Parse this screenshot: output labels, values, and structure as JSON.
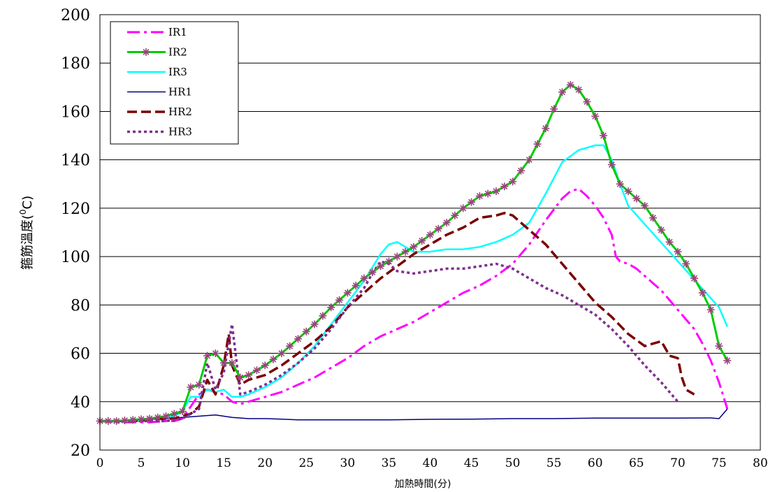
{
  "chart_data": {
    "type": "line",
    "title": "",
    "xlabel": "加熱時間(分)",
    "ylabel_main": "箍筋溫度(",
    "ylabel_sup": "0",
    "ylabel_end": "C)",
    "xlim": [
      0,
      80
    ],
    "ylim": [
      20,
      200
    ],
    "xticks": [
      0,
      5,
      10,
      15,
      20,
      25,
      30,
      35,
      40,
      45,
      50,
      55,
      60,
      65,
      70,
      75,
      80
    ],
    "yticks": [
      20,
      40,
      60,
      80,
      100,
      120,
      140,
      160,
      180,
      200
    ],
    "grid": "horizontal",
    "legend_position": "top-left",
    "series": [
      {
        "name": "IR1",
        "color": "#ff00ff",
        "style": "dash-dot",
        "x": [
          0,
          2,
          4,
          6,
          8,
          9,
          10,
          11,
          12,
          13,
          14,
          15,
          16,
          17,
          18,
          20,
          22,
          24,
          26,
          28,
          30,
          32,
          34,
          36,
          38,
          40,
          42,
          44,
          46,
          48,
          50,
          52,
          54,
          56,
          57,
          58,
          59,
          60,
          61,
          62,
          62.5,
          63,
          64,
          65,
          66,
          67,
          68,
          69,
          70,
          71,
          72,
          73,
          74,
          75,
          76
        ],
        "y": [
          32,
          31.5,
          31.5,
          31.5,
          32,
          32,
          33,
          38,
          43,
          45,
          44,
          43,
          40,
          39,
          40,
          42,
          44,
          47,
          50,
          54,
          58,
          63,
          67,
          70,
          73,
          77,
          81,
          85,
          88,
          92,
          97,
          105,
          115,
          124,
          127,
          128,
          125,
          121,
          116,
          109,
          100,
          98,
          97,
          95,
          92,
          89,
          86,
          82,
          78,
          74,
          70,
          64,
          57,
          48,
          37
        ]
      },
      {
        "name": "IR2",
        "color": "#00cc00",
        "style": "solid-star",
        "marker_color": "#99447a",
        "x": [
          0,
          2,
          4,
          6,
          8,
          9,
          10,
          11,
          12,
          13,
          14,
          15,
          16,
          17,
          18,
          20,
          22,
          24,
          26,
          28,
          30,
          32,
          34,
          36,
          38,
          40,
          42,
          44,
          46,
          48,
          50,
          52,
          54,
          55,
          56,
          57,
          58,
          59,
          60,
          61,
          62,
          63,
          64,
          65,
          66,
          67,
          68,
          69,
          70,
          71,
          72,
          73,
          74,
          75,
          76
        ],
        "y": [
          32,
          32,
          32.5,
          33,
          34,
          35,
          36,
          46,
          47,
          59,
          60,
          56,
          56,
          50,
          51,
          55,
          60,
          66,
          72,
          79,
          85,
          91,
          96,
          100,
          104,
          109,
          114,
          120,
          125,
          127,
          131,
          140,
          153,
          161,
          168,
          171,
          169,
          164,
          158,
          150,
          138,
          130,
          127,
          124,
          121,
          116,
          111,
          106,
          102,
          97,
          91,
          85,
          78,
          63,
          57
        ]
      },
      {
        "name": "IR3",
        "color": "#00ffff",
        "style": "solid",
        "x": [
          0,
          2,
          4,
          6,
          8,
          9,
          10,
          11,
          12,
          13,
          14,
          15,
          16,
          17,
          18,
          20,
          22,
          24,
          26,
          28,
          30,
          32,
          34,
          35,
          36,
          37,
          38,
          40,
          42,
          44,
          46,
          48,
          50,
          52,
          54,
          56,
          58,
          60,
          61,
          62,
          63,
          64,
          75,
          76
        ],
        "y": [
          32,
          32,
          32,
          33,
          33,
          34,
          36,
          42,
          42,
          45,
          44,
          45,
          42,
          42,
          43,
          46,
          50,
          56,
          63,
          72,
          81,
          90,
          101,
          105,
          106,
          104,
          102,
          102,
          103,
          103,
          104,
          106,
          109,
          114,
          126,
          139,
          144,
          146,
          146,
          140,
          130,
          121,
          79,
          71
        ]
      },
      {
        "name": "HR1",
        "color": "#000080",
        "style": "solid",
        "x": [
          0,
          5,
          10,
          12,
          14,
          16,
          18,
          20,
          22,
          24,
          26,
          30,
          35,
          40,
          45,
          50,
          55,
          60,
          65,
          70,
          74,
          75,
          76
        ],
        "y": [
          32,
          32.5,
          33.5,
          34,
          34.5,
          33.5,
          33,
          33,
          32.8,
          32.5,
          32.5,
          32.5,
          32.5,
          32.7,
          32.8,
          33,
          33,
          33.2,
          33.2,
          33.2,
          33.3,
          33,
          37
        ]
      },
      {
        "name": "HR2",
        "color": "#7a0000",
        "style": "dash",
        "x": [
          0,
          2,
          4,
          6,
          8,
          9,
          10,
          11,
          12,
          13,
          14,
          15,
          15.6,
          16,
          17,
          18,
          20,
          22,
          24,
          26,
          28,
          30,
          32,
          34,
          36,
          38,
          40,
          42,
          44,
          46,
          48,
          49,
          50,
          52,
          54,
          56,
          58,
          60,
          62,
          64,
          66,
          67,
          68,
          69,
          70,
          70.5,
          71,
          72
        ],
        "y": [
          32,
          32,
          32,
          32.5,
          33,
          33,
          34,
          35,
          38,
          49,
          43,
          55,
          68,
          55,
          47,
          49,
          51,
          55,
          60,
          65,
          71,
          79,
          85,
          91,
          96,
          101,
          105,
          109,
          112,
          116,
          117,
          118,
          117,
          111,
          105,
          97,
          89,
          81,
          75,
          68,
          63,
          64,
          65,
          59,
          58,
          50,
          45,
          43
        ]
      },
      {
        "name": "HR3",
        "color": "#7f2f8f",
        "style": "dot",
        "x": [
          0,
          2,
          4,
          6,
          8,
          9,
          10,
          11,
          12,
          13,
          14,
          15,
          16,
          16.5,
          17,
          18,
          20,
          22,
          24,
          26,
          28,
          30,
          32,
          33,
          34,
          35,
          36,
          38,
          40,
          42,
          44,
          46,
          48,
          50,
          52,
          54,
          56,
          58,
          60,
          62,
          64,
          66,
          68,
          70
        ],
        "y": [
          32,
          32,
          32,
          32,
          32,
          32.5,
          33,
          35,
          37,
          56,
          45,
          52,
          72,
          58,
          43,
          44,
          47,
          51,
          56,
          62,
          70,
          79,
          87,
          93,
          98,
          97,
          94,
          93,
          94,
          95,
          95,
          96,
          97,
          95,
          91,
          87,
          84,
          80,
          76,
          70,
          63,
          55,
          48,
          40
        ]
      }
    ]
  }
}
